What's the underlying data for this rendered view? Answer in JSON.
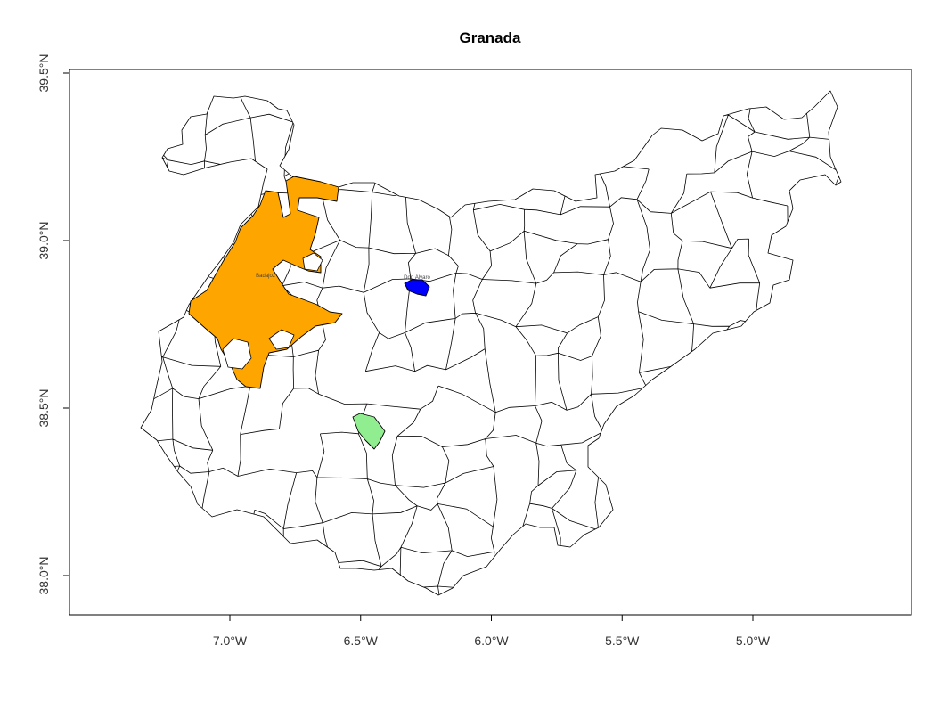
{
  "title": "Granada",
  "map": {
    "x_ticks": [
      {
        "value": -7.0,
        "label": "7.0°W"
      },
      {
        "value": -6.5,
        "label": "6.5°W"
      },
      {
        "value": -6.0,
        "label": "6.0°W"
      },
      {
        "value": -5.5,
        "label": "5.5°W"
      },
      {
        "value": -5.0,
        "label": "5.0°W"
      }
    ],
    "y_ticks": [
      {
        "value": 38.0,
        "label": "38.0°N"
      },
      {
        "value": 38.5,
        "label": "38.5°N"
      },
      {
        "value": 39.0,
        "label": "39.0°N"
      },
      {
        "value": 39.5,
        "label": "39.5°N"
      }
    ],
    "highlighted_regions": [
      {
        "name": "Badajoz",
        "color": "#FFA500"
      },
      {
        "name": "Don Álvaro",
        "color": "#0000FF"
      },
      {
        "name": "",
        "color": "#90EE90"
      }
    ],
    "base_fill": "#FFFFFF",
    "border_color": "#000000"
  }
}
